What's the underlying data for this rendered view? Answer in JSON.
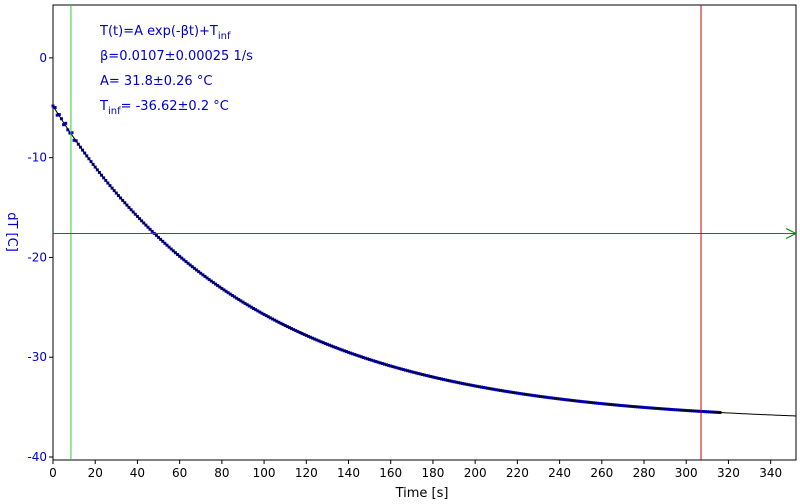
{
  "chart_data": {
    "type": "scatter",
    "title": "",
    "xlabel": "Time [s]",
    "ylabel": "dT [C]",
    "xlim": [
      0,
      352
    ],
    "ylim": [
      -40.3,
      5.3
    ],
    "x_ticks": [
      0,
      20,
      40,
      60,
      80,
      100,
      120,
      140,
      160,
      180,
      200,
      220,
      240,
      260,
      280,
      300,
      320,
      340
    ],
    "y_ticks": [
      0,
      -10,
      -20,
      -30,
      -40
    ],
    "grid": false,
    "colors": {
      "data": "#0000cc",
      "fit": "#000000",
      "axis_text": "#0000cc",
      "x_text": "#000000",
      "cursor_vertical_left": "#33cc33",
      "cursor_horizontal": "#008800",
      "cursor_vertical_right": "#cc0000"
    },
    "fit_model": {
      "A": 31.8,
      "beta": 0.0107,
      "T_inf": -36.62
    },
    "data_range": {
      "x_start": 0,
      "x_end": 316
    },
    "cursors": {
      "vertical_left_x": 8.5,
      "horizontal_y": -17.6,
      "vertical_right_x": 307
    },
    "annotations": [
      {
        "main": "T(t)=A exp(-βt)+T",
        "sub": "inf",
        "after": ""
      },
      {
        "main": "β=0.0107±0.00025 1/s",
        "sub": "",
        "after": ""
      },
      {
        "main": "A= 31.8±0.26 °C",
        "sub": "",
        "after": ""
      },
      {
        "main": "T",
        "sub": "inf",
        "after": "= -36.62±0.2 °C"
      }
    ]
  }
}
